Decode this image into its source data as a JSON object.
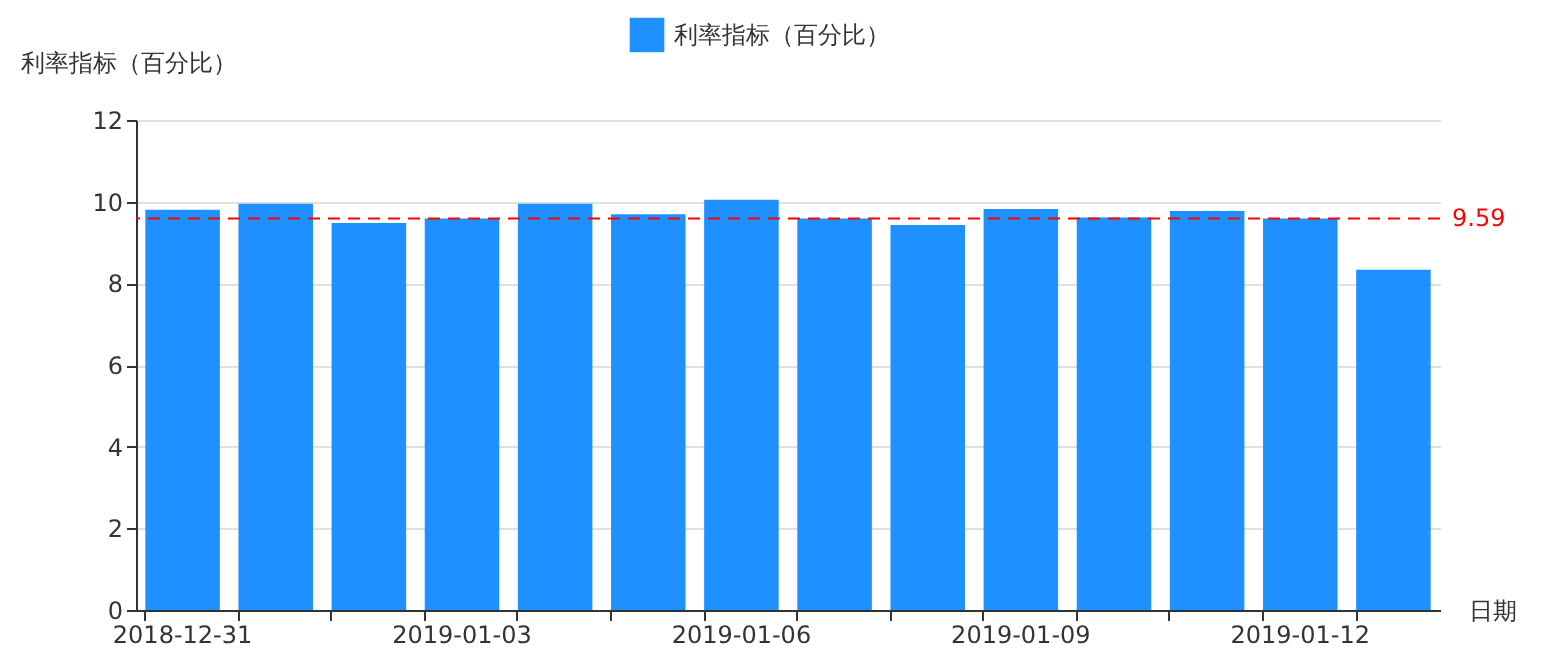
{
  "chart_data": {
    "type": "bar",
    "xlabel": "日期",
    "ylabel": "利率指标（百分比）",
    "categories": [
      "2018-12-31",
      null,
      null,
      "2019-01-03",
      null,
      null,
      "2019-01-06",
      null,
      null,
      "2019-01-09",
      null,
      null,
      "2019-01-12",
      null
    ],
    "series": [
      {
        "name": "利率指标（百分比）",
        "color": "#1e90ff",
        "values": [
          9.8,
          9.95,
          9.48,
          9.59,
          9.95,
          9.69,
          10.05,
          9.59,
          9.43,
          9.82,
          9.61,
          9.77,
          9.59,
          8.33
        ]
      }
    ],
    "ylim": [
      0,
      12
    ],
    "yticks": [
      0,
      2,
      4,
      6,
      8,
      10,
      12
    ],
    "grid": "y",
    "legend": "top",
    "ref_lines": [
      {
        "axis": "y",
        "value": 9.59,
        "label": "9.59",
        "color": "#ff0000",
        "line_style": "dashed"
      }
    ]
  }
}
